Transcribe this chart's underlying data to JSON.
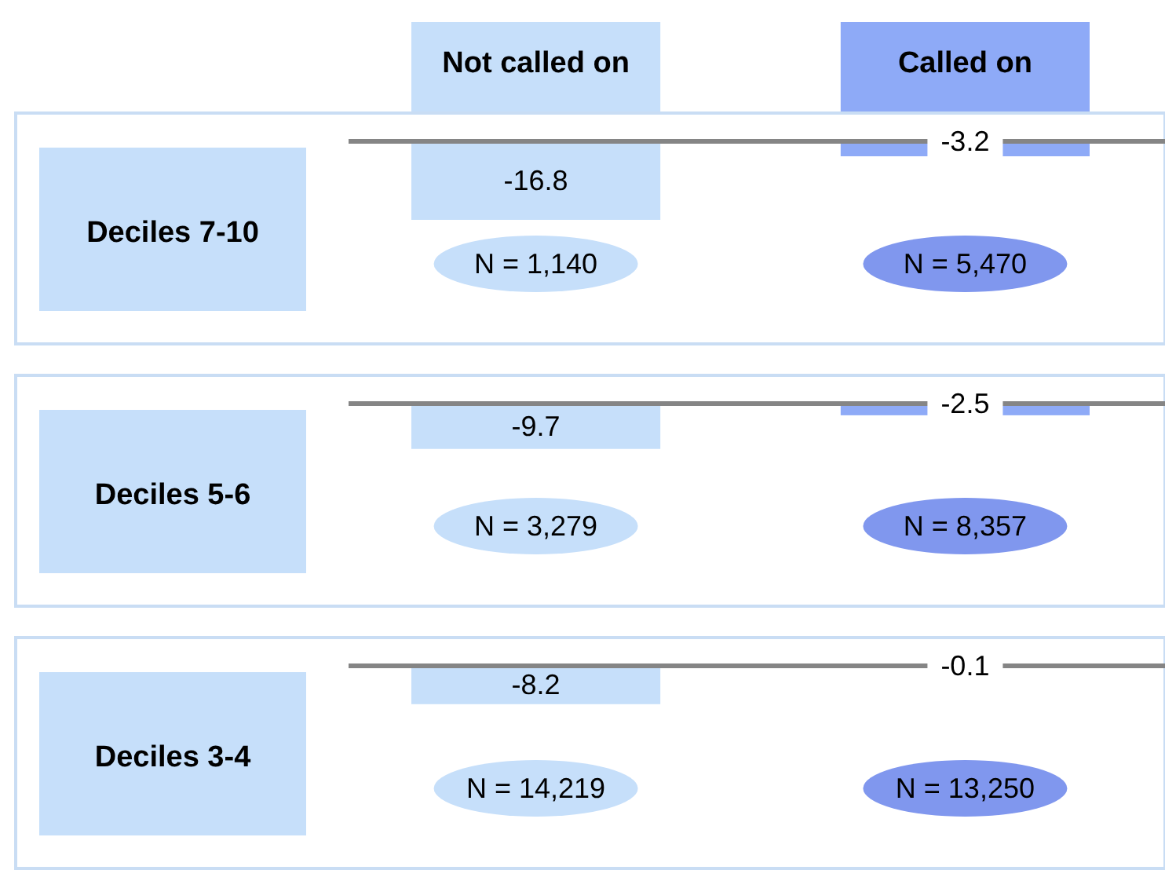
{
  "chart_data": [
    {
      "type": "bar",
      "title": "Deciles 7-10",
      "categories": [
        "Not called on",
        "Called on"
      ],
      "values": [
        -16.8,
        -3.2
      ],
      "colors": [
        "#c6dffa",
        "#8eaaf7"
      ],
      "data_labels": true,
      "annotations": [
        "N = 1,140",
        "N = 5,470"
      ],
      "tick_labels": "x"
    },
    {
      "type": "bar",
      "title": "Deciles 5-6",
      "categories": [
        null,
        null
      ],
      "values": [
        -9.7,
        -2.5
      ],
      "colors": [
        "#c6dffa",
        "#8eaaf7"
      ],
      "data_labels": true,
      "annotations": [
        "N = 3,279",
        "N = 8,357"
      ],
      "tick_labels": false
    },
    {
      "type": "bar",
      "title": "Deciles 3-4",
      "categories": [
        null,
        null
      ],
      "values": [
        -8.2,
        -0.1
      ],
      "colors": [
        "#c6dffa",
        "#8eaaf7"
      ],
      "data_labels": true,
      "annotations": [
        "N = 14,219",
        "N = 13,250"
      ],
      "tick_labels": false
    }
  ]
}
